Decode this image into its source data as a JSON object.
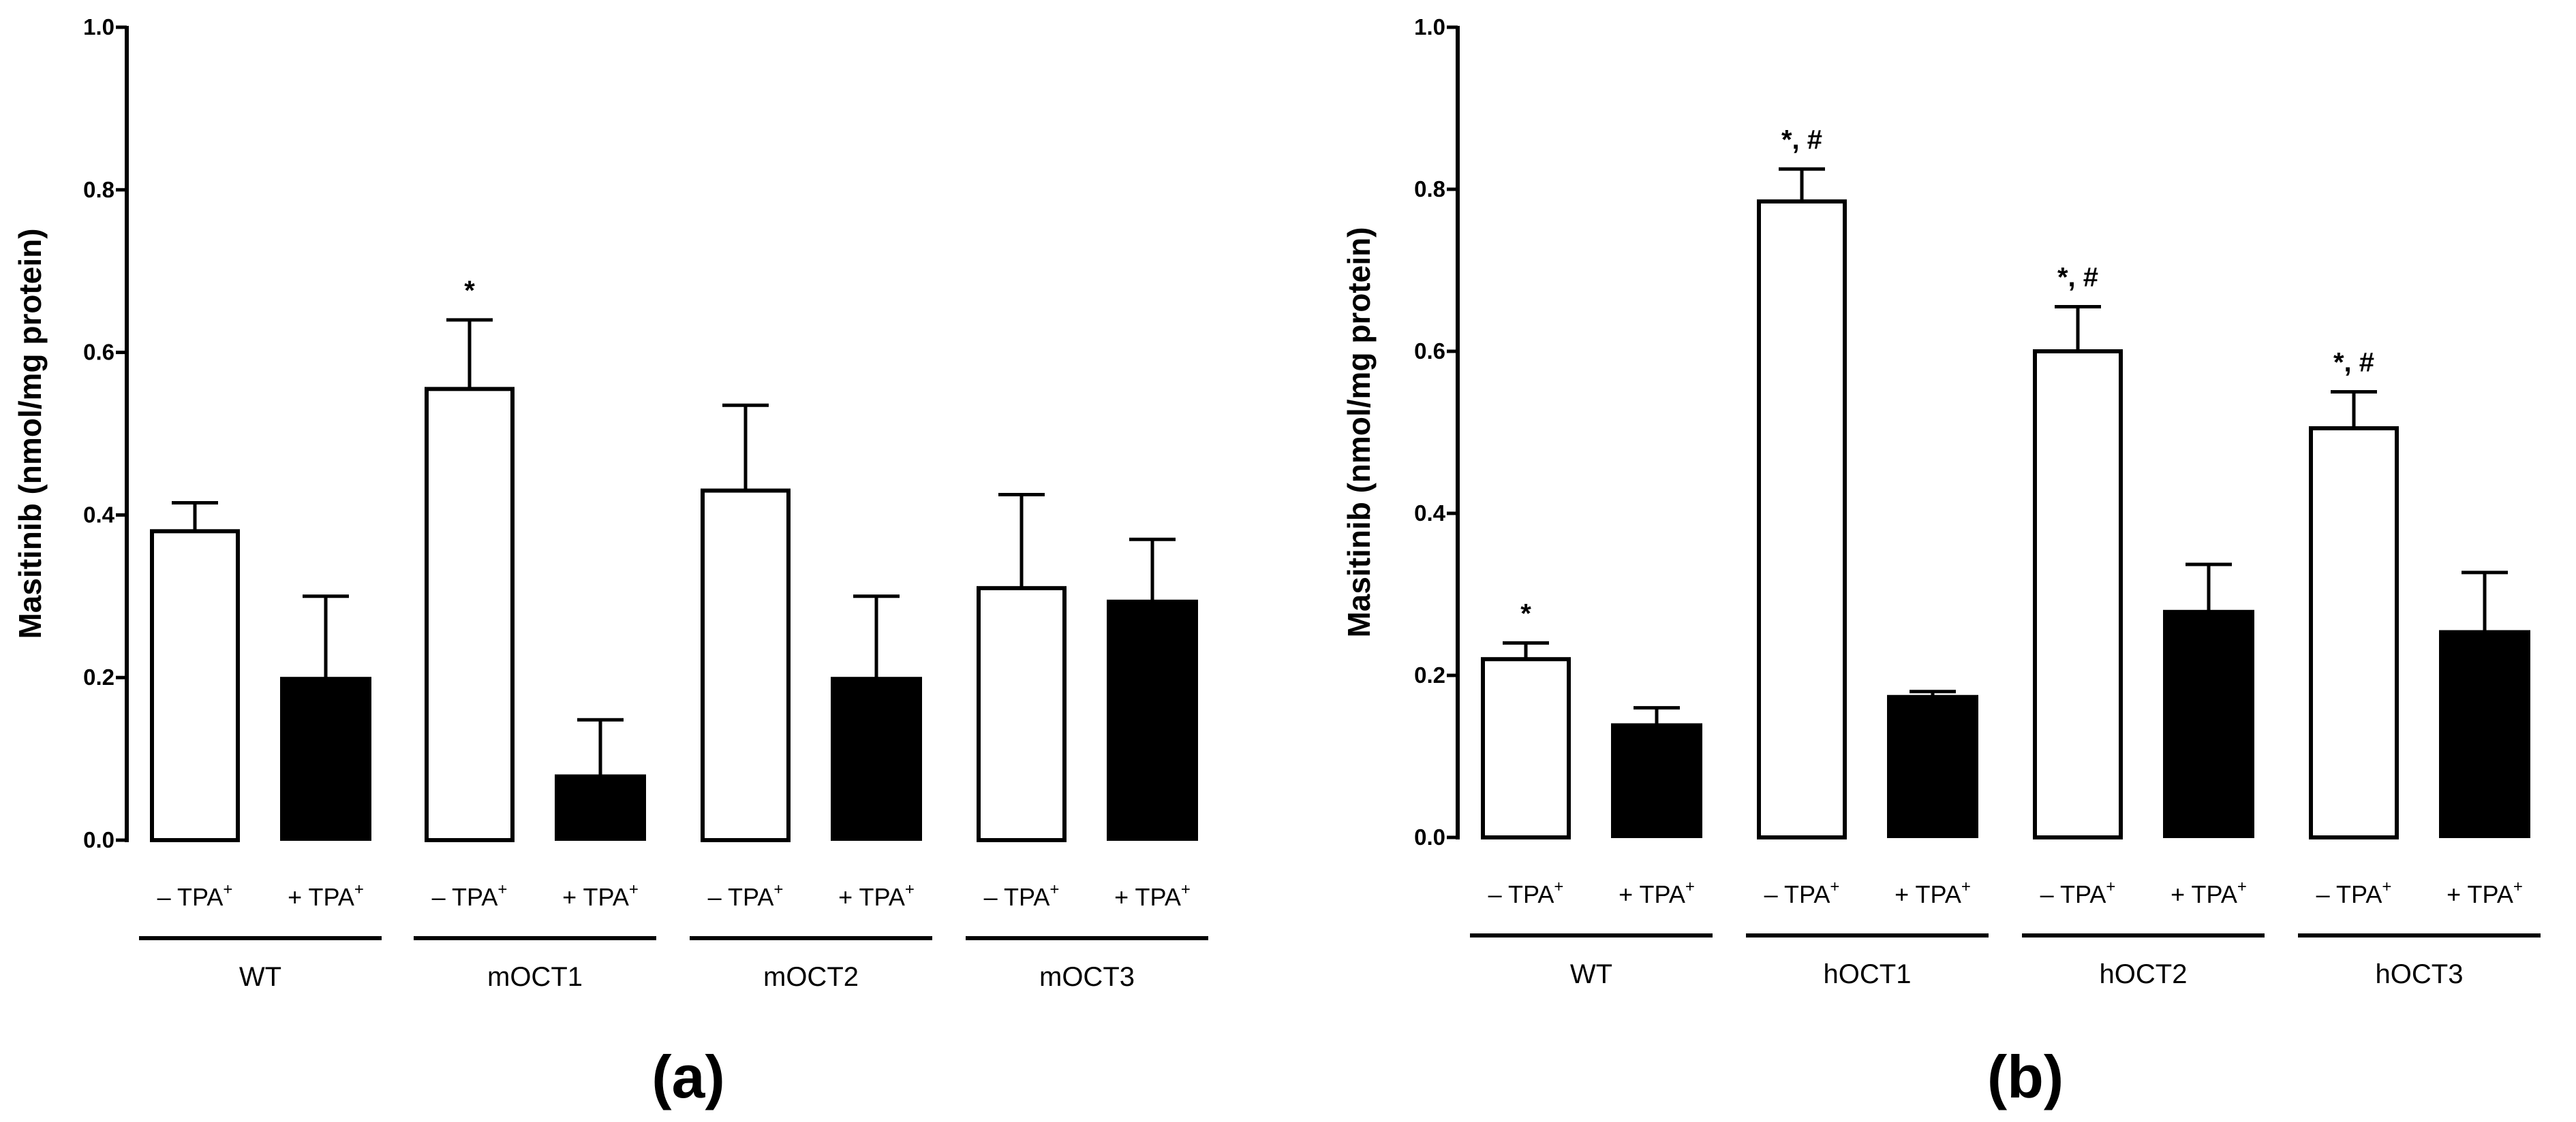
{
  "chart_data": [
    {
      "type": "bar",
      "panel_label": "(a)",
      "ylabel": "Masitinib (nmol/mg protein)",
      "xlabel": "",
      "ylim": [
        0,
        1.0
      ],
      "yticks": [
        "0.0",
        "0.2",
        "0.4",
        "0.6",
        "0.8",
        "1.0"
      ],
      "condition_labels": {
        "minus": {
          "sign": "– TPA",
          "sup": "+"
        },
        "plus": {
          "sign": "+ TPA",
          "sup": "+"
        }
      },
      "groups": [
        {
          "name": "WT",
          "bars": [
            {
              "condition": "– TPA+",
              "value": 0.38,
              "error": 0.035,
              "fill": "#ffffff",
              "annotation": ""
            },
            {
              "condition": "+ TPA+",
              "value": 0.2,
              "error": 0.1,
              "fill": "#000000",
              "annotation": ""
            }
          ]
        },
        {
          "name": "mOCT1",
          "bars": [
            {
              "condition": "– TPA+",
              "value": 0.555,
              "error": 0.085,
              "fill": "#ffffff",
              "annotation": "*"
            },
            {
              "condition": "+ TPA+",
              "value": 0.08,
              "error": 0.068,
              "fill": "#000000",
              "annotation": ""
            }
          ]
        },
        {
          "name": "mOCT2",
          "bars": [
            {
              "condition": "– TPA+",
              "value": 0.43,
              "error": 0.105,
              "fill": "#ffffff",
              "annotation": ""
            },
            {
              "condition": "+ TPA+",
              "value": 0.2,
              "error": 0.1,
              "fill": "#000000",
              "annotation": ""
            }
          ]
        },
        {
          "name": "mOCT3",
          "bars": [
            {
              "condition": "– TPA+",
              "value": 0.31,
              "error": 0.115,
              "fill": "#ffffff",
              "annotation": ""
            },
            {
              "condition": "+ TPA+",
              "value": 0.295,
              "error": 0.075,
              "fill": "#000000",
              "annotation": ""
            }
          ]
        }
      ]
    },
    {
      "type": "bar",
      "panel_label": "(b)",
      "ylabel": "Masitinib (nmol/mg protein)",
      "xlabel": "",
      "ylim": [
        0,
        1.0
      ],
      "yticks": [
        "0.0",
        "0.2",
        "0.4",
        "0.6",
        "0.8",
        "1.0"
      ],
      "condition_labels": {
        "minus": {
          "sign": "– TPA",
          "sup": "+"
        },
        "plus": {
          "sign": "+ TPA",
          "sup": "+"
        }
      },
      "groups": [
        {
          "name": "WT",
          "bars": [
            {
              "condition": "– TPA+",
              "value": 0.22,
              "error": 0.02,
              "fill": "#ffffff",
              "annotation": "*"
            },
            {
              "condition": "+ TPA+",
              "value": 0.14,
              "error": 0.02,
              "fill": "#000000",
              "annotation": ""
            }
          ]
        },
        {
          "name": "hOCT1",
          "bars": [
            {
              "condition": "– TPA+",
              "value": 0.785,
              "error": 0.04,
              "fill": "#ffffff",
              "annotation": "*, #"
            },
            {
              "condition": "+ TPA+",
              "value": 0.175,
              "error": 0.005,
              "fill": "#000000",
              "annotation": ""
            }
          ]
        },
        {
          "name": "hOCT2",
          "bars": [
            {
              "condition": "– TPA+",
              "value": 0.6,
              "error": 0.055,
              "fill": "#ffffff",
              "annotation": "*, #"
            },
            {
              "condition": "+ TPA+",
              "value": 0.28,
              "error": 0.057,
              "fill": "#000000",
              "annotation": ""
            }
          ]
        },
        {
          "name": "hOCT3",
          "bars": [
            {
              "condition": "– TPA+",
              "value": 0.505,
              "error": 0.045,
              "fill": "#ffffff",
              "annotation": "*, #"
            },
            {
              "condition": "+ TPA+",
              "value": 0.255,
              "error": 0.072,
              "fill": "#000000",
              "annotation": ""
            }
          ]
        }
      ]
    }
  ]
}
